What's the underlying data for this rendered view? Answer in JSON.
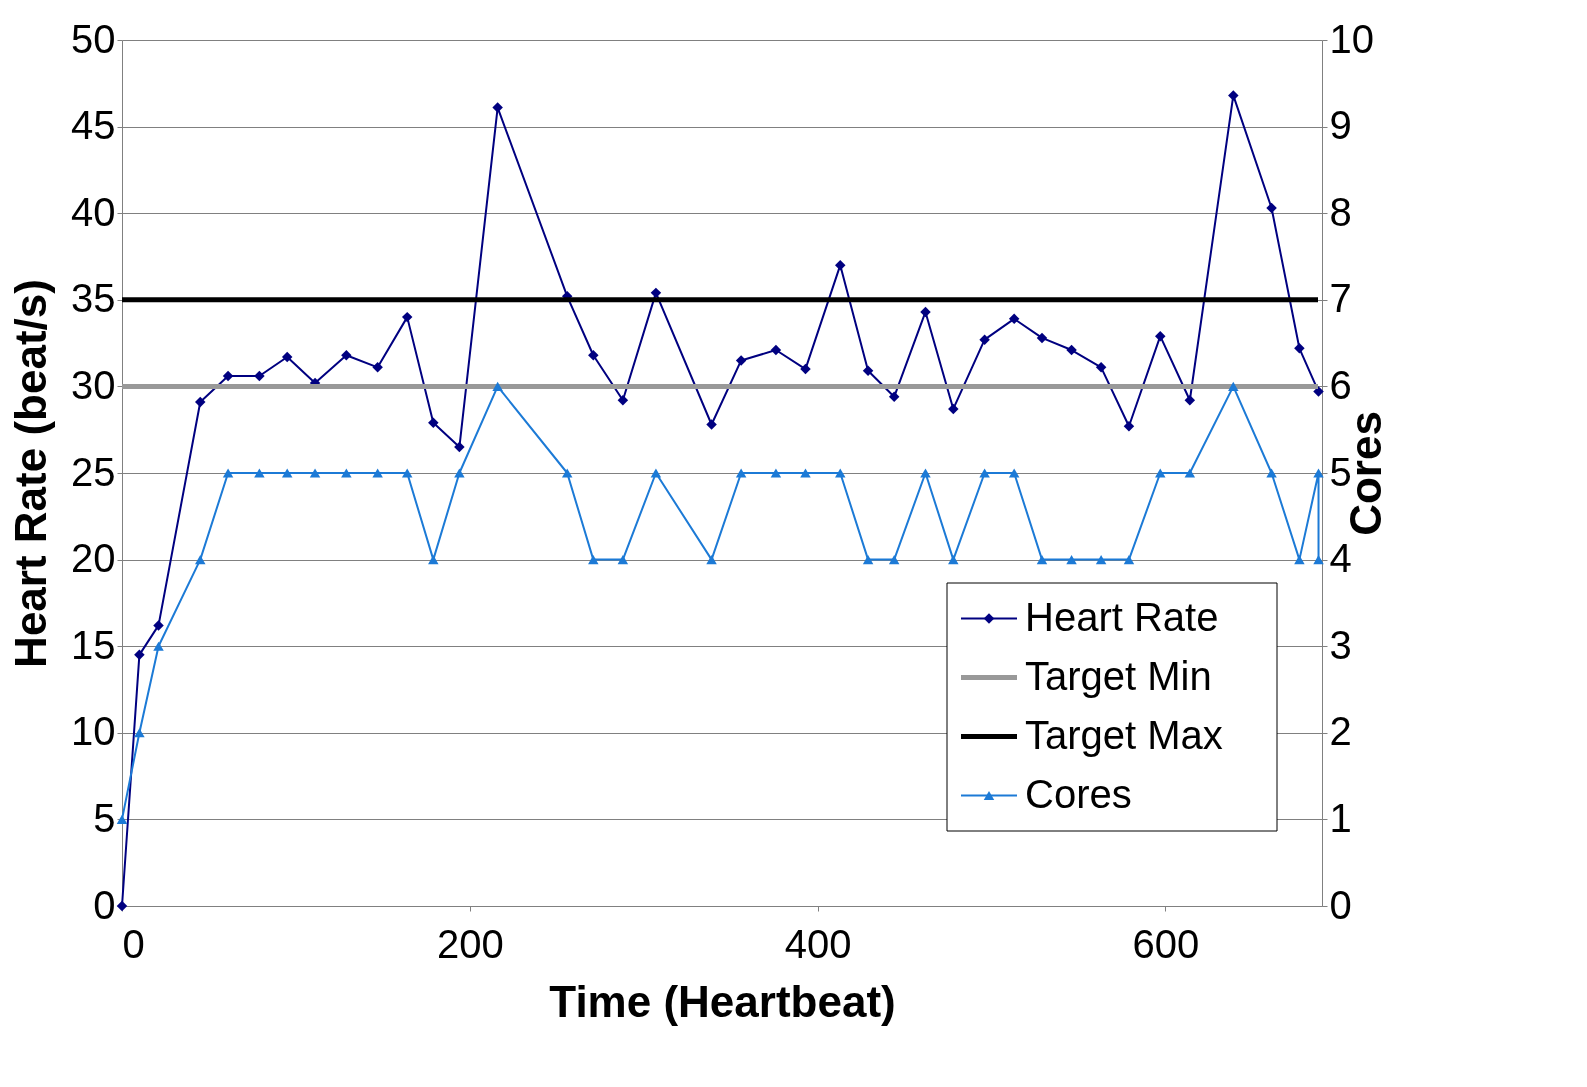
{
  "chart_data": {
    "type": "line",
    "xlabel": "Time (Heartbeat)",
    "ylabel": "Heart Rate (beat/s)",
    "y2label": "Cores",
    "xlim": [
      0,
      690
    ],
    "xticks": [
      0,
      200,
      400,
      600
    ],
    "ylim": [
      0,
      50
    ],
    "yticks": [
      0,
      5,
      10,
      15,
      20,
      25,
      30,
      35,
      40,
      45,
      50
    ],
    "y2lim": [
      0,
      10
    ],
    "y2ticks": [
      0,
      1,
      2,
      3,
      4,
      5,
      6,
      7,
      8,
      9,
      10
    ],
    "grid": "y",
    "legend": "bottom right",
    "series": [
      {
        "name": "Heart Rate",
        "color": "#000080",
        "marker": "diamond",
        "x": [
          0,
          10,
          21,
          45,
          61,
          79,
          95,
          111,
          129,
          147,
          164,
          179,
          194,
          216,
          256,
          271,
          288,
          307,
          339,
          356,
          376,
          393,
          413,
          429,
          444,
          462,
          478,
          496,
          513,
          529,
          546,
          563,
          579,
          597,
          614,
          639,
          661,
          677,
          688
        ],
        "values": [
          0,
          14.5,
          16.2,
          29.1,
          30.6,
          30.6,
          31.7,
          30.2,
          31.8,
          31.1,
          34.0,
          27.9,
          26.5,
          46.1,
          35.2,
          31.8,
          29.2,
          35.4,
          27.8,
          31.5,
          32.1,
          31.0,
          37.0,
          30.9,
          29.4,
          34.3,
          28.7,
          32.7,
          33.9,
          32.8,
          32.1,
          31.1,
          27.7,
          32.9,
          29.2,
          46.8,
          40.3,
          32.2,
          29.7
        ]
      },
      {
        "name": "Cores",
        "color": "#1c7ad6",
        "marker": "triangle",
        "axis": "y2",
        "x": [
          0,
          10,
          21,
          45,
          61,
          79,
          95,
          111,
          129,
          147,
          164,
          179,
          194,
          216,
          256,
          271,
          288,
          307,
          339,
          356,
          376,
          393,
          413,
          429,
          444,
          462,
          478,
          496,
          513,
          529,
          546,
          563,
          579,
          597,
          614,
          639,
          661,
          677,
          688,
          688
        ],
        "values": [
          1,
          2,
          3,
          4,
          5,
          5,
          5,
          5,
          5,
          5,
          5,
          4,
          5,
          6,
          5,
          4,
          4,
          5,
          4,
          5,
          5,
          5,
          5,
          4,
          4,
          5,
          4,
          5,
          5,
          4,
          4,
          4,
          4,
          5,
          5,
          6,
          5,
          4,
          5,
          4
        ]
      }
    ],
    "ref_lines": [
      {
        "axis": "y",
        "value": 30,
        "label": "Target Min",
        "color": "#999999"
      },
      {
        "axis": "y",
        "value": 35,
        "label": "Target Max",
        "color": "#000000"
      }
    ]
  }
}
